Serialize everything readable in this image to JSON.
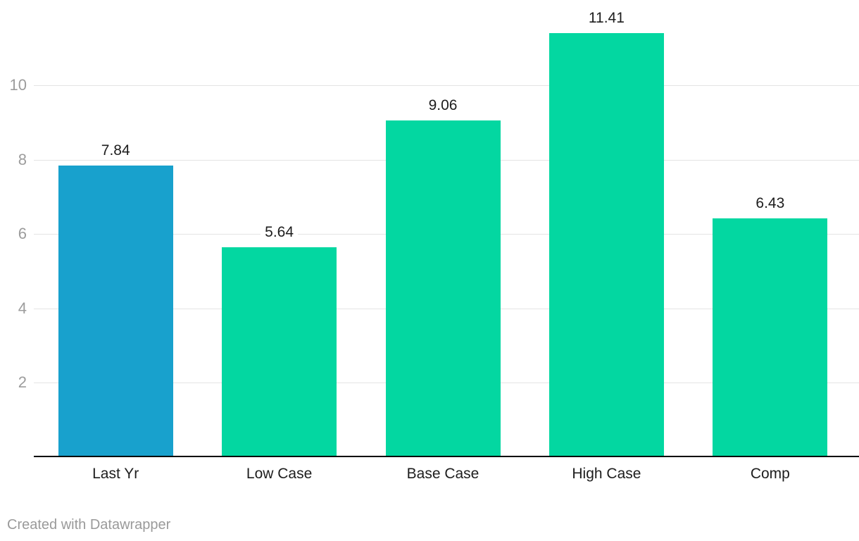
{
  "chart_data": {
    "type": "bar",
    "categories": [
      "Last Yr",
      "Low Case",
      "Base Case",
      "High Case",
      "Comp"
    ],
    "values": [
      7.84,
      5.64,
      9.06,
      11.41,
      6.43
    ],
    "value_labels": [
      "7.84",
      "5.64",
      "9.06",
      "11.41",
      "6.43"
    ],
    "bar_colors": [
      "#18a1cd",
      "#03d7a1",
      "#03d7a1",
      "#03d7a1",
      "#03d7a1"
    ],
    "y_ticks": [
      2,
      4,
      6,
      8,
      10
    ],
    "ylim": [
      0,
      11.9
    ],
    "title": "",
    "xlabel": "",
    "ylabel": "",
    "grid": true,
    "legend": false
  },
  "colors": {
    "highlight_bar": "#18a1cd",
    "default_bar": "#03d7a1",
    "gridline": "#e4e4e4",
    "axis_line": "#000000",
    "tick_label": "#9c9c9c",
    "data_label": "#1d1d1d",
    "attribution": "#9a9a9a"
  },
  "footer": {
    "attribution": "Created with Datawrapper"
  }
}
